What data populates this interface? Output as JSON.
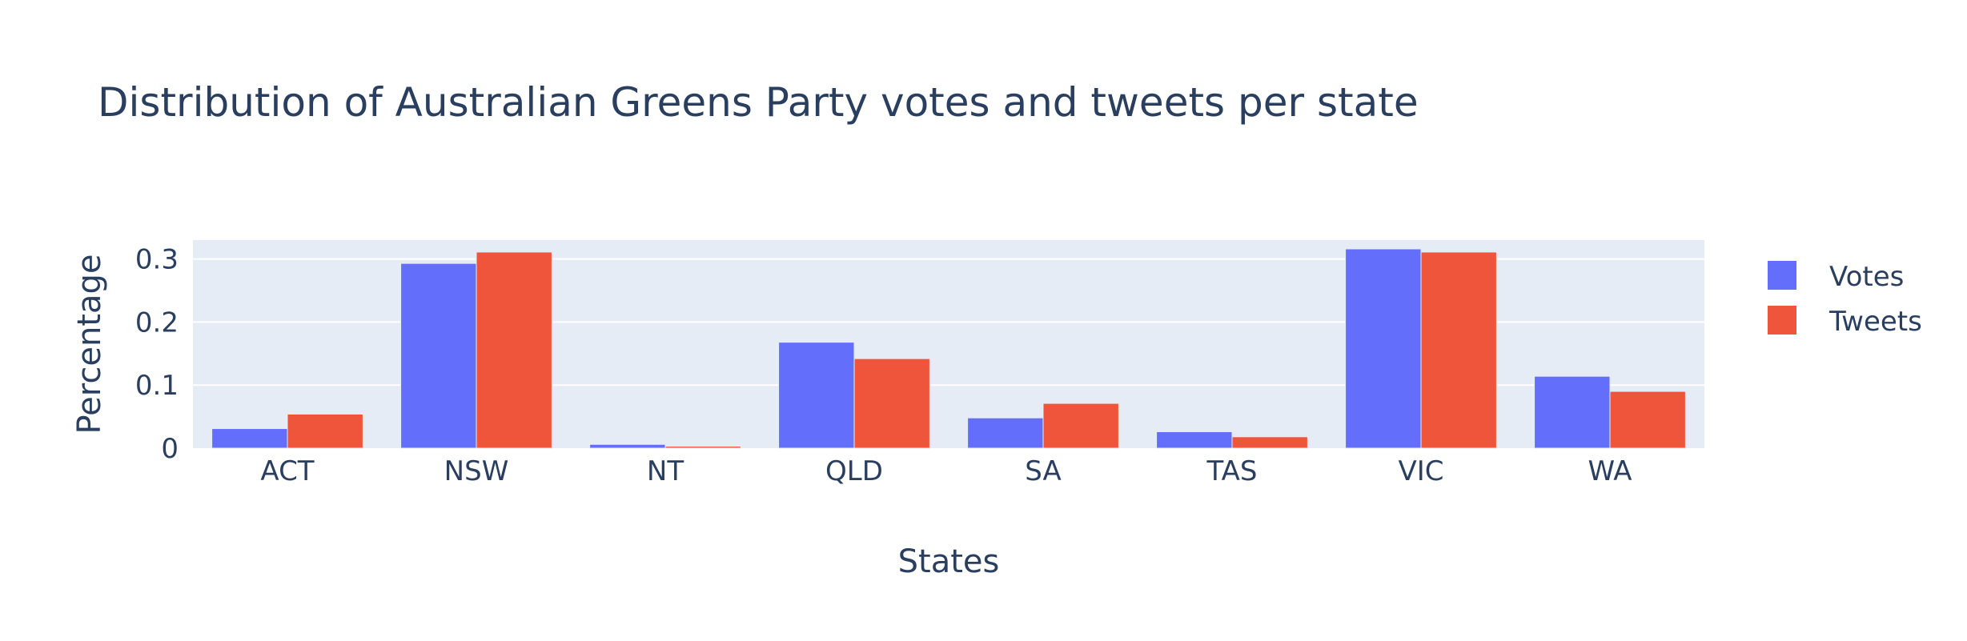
{
  "chart_data": {
    "type": "bar",
    "title": "Distribution of Australian Greens Party votes and tweets per state",
    "xlabel": "States",
    "ylabel": "Percentage",
    "categories": [
      "ACT",
      "NSW",
      "NT",
      "QLD",
      "SA",
      "TAS",
      "VIC",
      "WA"
    ],
    "series": [
      {
        "name": "Votes",
        "values": [
          0.031,
          0.293,
          0.006,
          0.168,
          0.048,
          0.026,
          0.316,
          0.114
        ]
      },
      {
        "name": "Tweets",
        "values": [
          0.054,
          0.311,
          0.003,
          0.142,
          0.071,
          0.018,
          0.311,
          0.09
        ]
      }
    ],
    "ylim": [
      0,
      0.33
    ],
    "yticks": [
      0,
      0.1,
      0.2,
      0.3
    ],
    "ytick_labels": [
      "0",
      "0.1",
      "0.2",
      "0.3"
    ],
    "grid": true,
    "legend_position": "right",
    "colors": {
      "Votes": "#636efa",
      "Tweets": "#ef553b",
      "plot_bg": "#e5ecf6",
      "grid": "#ffffff",
      "text": "#2a3f5f"
    }
  }
}
